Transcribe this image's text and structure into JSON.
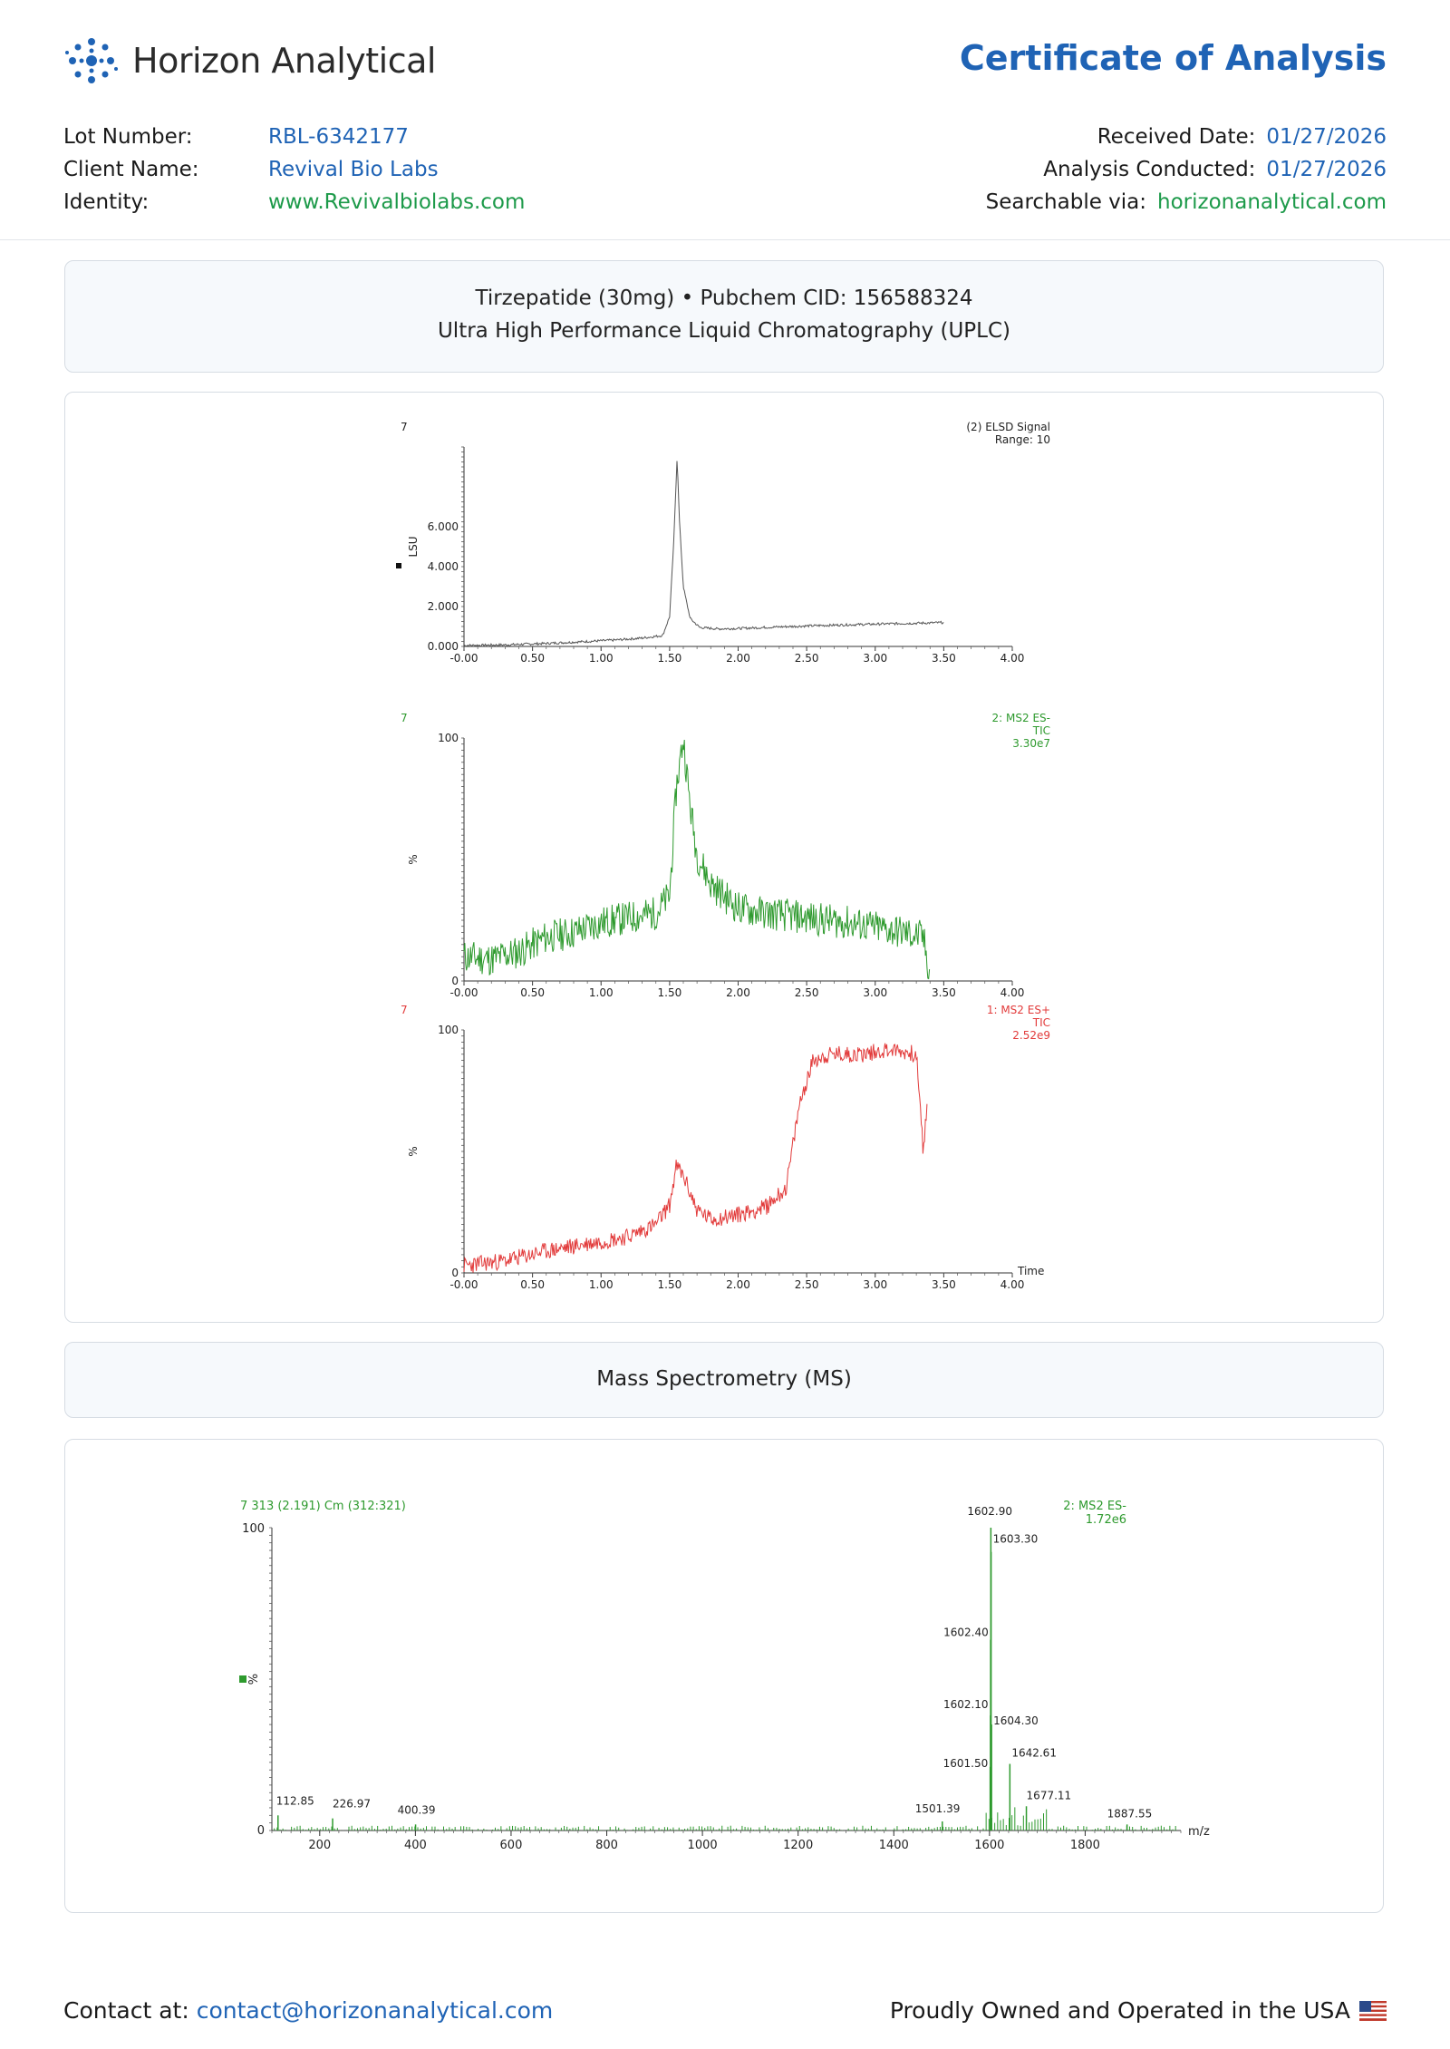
{
  "header": {
    "brand": "Horizon Analytical",
    "doc_title": "Certificate of Analysis",
    "left": [
      {
        "label": "Lot Number:",
        "value": "RBL-6342177"
      },
      {
        "label": "Client Name:",
        "value": "Revival Bio Labs"
      },
      {
        "label": "Identity:",
        "value": "www.Revivalbiolabs.com"
      }
    ],
    "right": [
      {
        "label": "Received Date:",
        "value": "01/27/2026"
      },
      {
        "label": "Analysis Conducted:",
        "value": "01/27/2026"
      },
      {
        "label": "Searchable via:",
        "value": "horizonanalytical.com"
      }
    ]
  },
  "uplc_panel": {
    "line1": "Tirzepatide (30mg) • Pubchem CID: 156588324",
    "line2": "Ultra High Performance Liquid Chromatography (UPLC)"
  },
  "ms_panel": {
    "title": "Mass Spectrometry (MS)"
  },
  "chart_data": [
    {
      "type": "line",
      "name": "elsd",
      "top_left": "7",
      "legend": [
        "(2) ELSD Signal",
        "Range: 10"
      ],
      "ylabel": "LSU",
      "xlim": [
        0,
        4.0
      ],
      "ylim": [
        0,
        10
      ],
      "yticks": [
        "0.000",
        "2.000",
        "4.000",
        "6.000"
      ],
      "xticks": [
        "-0.00",
        "0.50",
        "1.00",
        "1.50",
        "2.00",
        "2.50",
        "3.00",
        "3.50",
        "4.00"
      ],
      "color": "#555555",
      "points": [
        [
          0,
          0.05
        ],
        [
          0.3,
          0.08
        ],
        [
          0.6,
          0.15
        ],
        [
          0.9,
          0.25
        ],
        [
          1.1,
          0.32
        ],
        [
          1.3,
          0.42
        ],
        [
          1.45,
          0.55
        ],
        [
          1.5,
          1.5
        ],
        [
          1.53,
          5.2
        ],
        [
          1.555,
          9.5
        ],
        [
          1.57,
          6.5
        ],
        [
          1.6,
          3.0
        ],
        [
          1.65,
          1.4
        ],
        [
          1.72,
          0.95
        ],
        [
          1.85,
          0.88
        ],
        [
          2.0,
          0.9
        ],
        [
          2.3,
          0.98
        ],
        [
          2.6,
          1.05
        ],
        [
          3.0,
          1.12
        ],
        [
          3.2,
          1.15
        ],
        [
          3.4,
          1.18
        ],
        [
          3.5,
          1.2
        ]
      ]
    },
    {
      "type": "line",
      "name": "ms-neg-tic",
      "top_left": "7",
      "legend": [
        "2: MS2 ES-",
        "TIC",
        "3.30e7"
      ],
      "ylabel": "%",
      "xlim": [
        0,
        4.0
      ],
      "ylim": [
        0,
        100
      ],
      "yticks": [
        "0",
        "100"
      ],
      "xticks": [
        "-0.00",
        "0.50",
        "1.00",
        "1.50",
        "2.00",
        "2.50",
        "3.00",
        "3.50",
        "4.00"
      ],
      "color": "#2e9a2e",
      "points": [
        [
          0,
          10
        ],
        [
          0.2,
          9
        ],
        [
          0.4,
          12
        ],
        [
          0.6,
          18
        ],
        [
          0.8,
          20
        ],
        [
          1.0,
          24
        ],
        [
          1.2,
          26
        ],
        [
          1.4,
          28
        ],
        [
          1.5,
          35
        ],
        [
          1.55,
          80
        ],
        [
          1.6,
          100
        ],
        [
          1.65,
          72
        ],
        [
          1.7,
          52
        ],
        [
          1.8,
          40
        ],
        [
          2.0,
          30
        ],
        [
          2.2,
          28
        ],
        [
          2.5,
          26
        ],
        [
          2.8,
          24
        ],
        [
          3.0,
          22
        ],
        [
          3.2,
          20
        ],
        [
          3.35,
          18
        ],
        [
          3.4,
          2
        ]
      ]
    },
    {
      "type": "line",
      "name": "ms-pos-tic",
      "top_left": "7",
      "legend": [
        "1: MS2 ES+",
        "TIC",
        "2.52e9"
      ],
      "ylabel": "%",
      "xlabel": "Time",
      "xlim": [
        0,
        4.0
      ],
      "ylim": [
        0,
        100
      ],
      "yticks": [
        "0",
        "100"
      ],
      "xticks": [
        "-0.00",
        "0.50",
        "1.00",
        "1.50",
        "2.00",
        "2.50",
        "3.00",
        "3.50",
        "4.00"
      ],
      "color": "#e23b3b",
      "points": [
        [
          0,
          3
        ],
        [
          0.3,
          5
        ],
        [
          0.6,
          9
        ],
        [
          0.9,
          12
        ],
        [
          1.2,
          15
        ],
        [
          1.4,
          20
        ],
        [
          1.5,
          28
        ],
        [
          1.55,
          44
        ],
        [
          1.6,
          40
        ],
        [
          1.7,
          26
        ],
        [
          1.8,
          22
        ],
        [
          2.0,
          24
        ],
        [
          2.2,
          27
        ],
        [
          2.35,
          35
        ],
        [
          2.45,
          70
        ],
        [
          2.55,
          88
        ],
        [
          2.7,
          90
        ],
        [
          2.9,
          90
        ],
        [
          3.1,
          92
        ],
        [
          3.3,
          90
        ],
        [
          3.35,
          50
        ],
        [
          3.38,
          70
        ]
      ]
    },
    {
      "type": "bar",
      "name": "mass-spectrum",
      "top_left": "7 313 (2.191) Cm (312:321)",
      "legend": [
        "2: MS2 ES-",
        "1.72e6"
      ],
      "ylabel": "%",
      "xlabel": "m/z",
      "xlim": [
        100,
        2000
      ],
      "ylim": [
        0,
        100
      ],
      "yticks": [
        "0",
        "100"
      ],
      "xticks": [
        "200",
        "400",
        "600",
        "800",
        "1000",
        "1200",
        "1400",
        "1600",
        "1800"
      ],
      "color": "#2e9a2e",
      "peaks": [
        {
          "mz": 112.85,
          "value": 5,
          "label": "112.85"
        },
        {
          "mz": 226.97,
          "value": 4,
          "label": "226.97"
        },
        {
          "mz": 400.39,
          "value": 2,
          "label": "400.39"
        },
        {
          "mz": 1501.39,
          "value": 3,
          "label": "1501.39"
        },
        {
          "mz": 1601.5,
          "value": 21,
          "label": "1601.50"
        },
        {
          "mz": 1602.1,
          "value": 38,
          "label": "1602.10"
        },
        {
          "mz": 1602.4,
          "value": 63,
          "label": "1602.40"
        },
        {
          "mz": 1602.9,
          "value": 100,
          "label": "1602.90"
        },
        {
          "mz": 1603.3,
          "value": 92,
          "label": "1603.30"
        },
        {
          "mz": 1604.3,
          "value": 35,
          "label": "1604.30"
        },
        {
          "mz": 1642.61,
          "value": 22,
          "label": "1642.61"
        },
        {
          "mz": 1677.11,
          "value": 8,
          "label": "1677.11"
        },
        {
          "mz": 1887.55,
          "value": 2,
          "label": "1887.55"
        }
      ]
    }
  ],
  "footer": {
    "contact_label": "Contact at:",
    "contact_email": "contact@horizonanalytical.com",
    "tagline": "Proudly Owned and Operated in the USA"
  }
}
